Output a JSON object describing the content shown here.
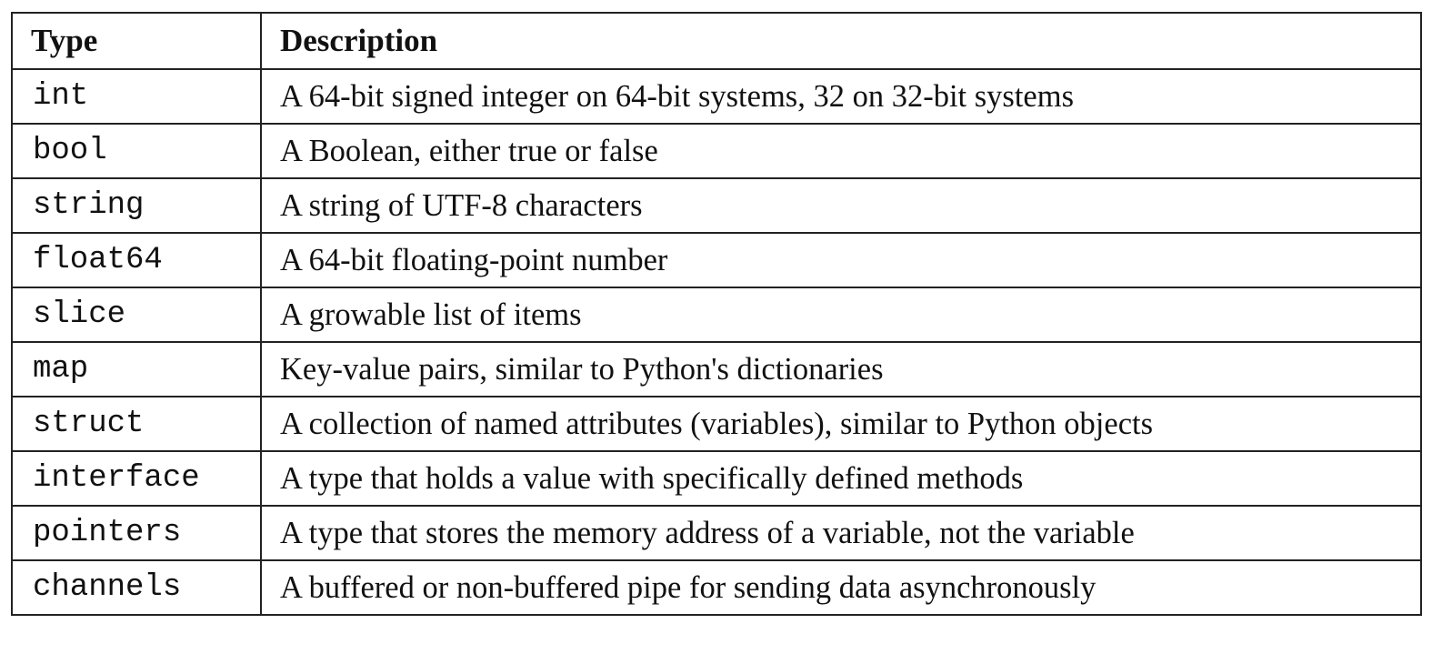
{
  "table": {
    "headers": [
      "Type",
      "Description"
    ],
    "rows": [
      [
        "int",
        "A 64-bit signed integer on 64-bit systems, 32 on 32-bit systems"
      ],
      [
        "bool",
        "A Boolean, either true or false"
      ],
      [
        "string",
        "A string of UTF-8 characters"
      ],
      [
        "float64",
        "A 64-bit floating-point number"
      ],
      [
        "slice",
        "A growable list of items"
      ],
      [
        "map",
        "Key-value pairs, similar to Python's dictionaries"
      ],
      [
        "struct",
        "A collection of named attributes (variables), similar to Python objects"
      ],
      [
        "interface",
        "A type that holds a value with specifically defined methods"
      ],
      [
        "pointers",
        "A type that stores the memory address of a variable, not the variable"
      ],
      [
        "channels",
        "A buffered or non-buffered pipe for sending data asynchronously"
      ]
    ]
  }
}
